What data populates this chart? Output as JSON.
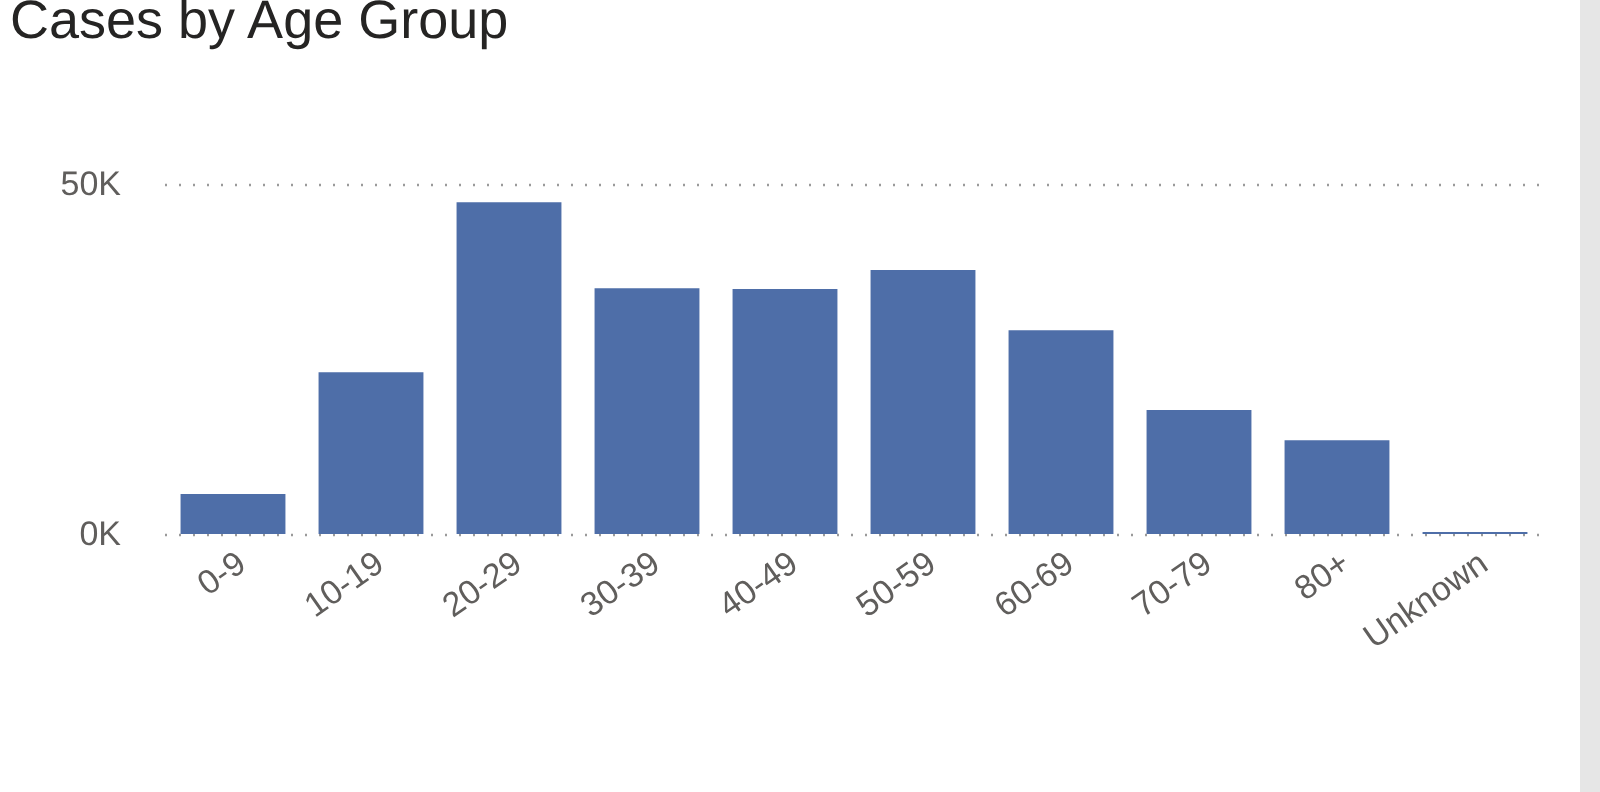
{
  "chart_data": {
    "type": "bar",
    "title": "Cases by Age Group",
    "categories": [
      "0-9",
      "10-19",
      "20-29",
      "30-39",
      "40-49",
      "50-59",
      "60-69",
      "70-79",
      "80+",
      "Unknown"
    ],
    "values": [
      5700,
      23100,
      47400,
      35100,
      35000,
      37700,
      29100,
      17700,
      13400,
      300
    ],
    "color": "#4e6ea8",
    "ylim": [
      0,
      50000
    ],
    "yticks": [
      {
        "value": 0,
        "label": "0K"
      },
      {
        "value": 50000,
        "label": "50K"
      }
    ],
    "grid": "y"
  }
}
